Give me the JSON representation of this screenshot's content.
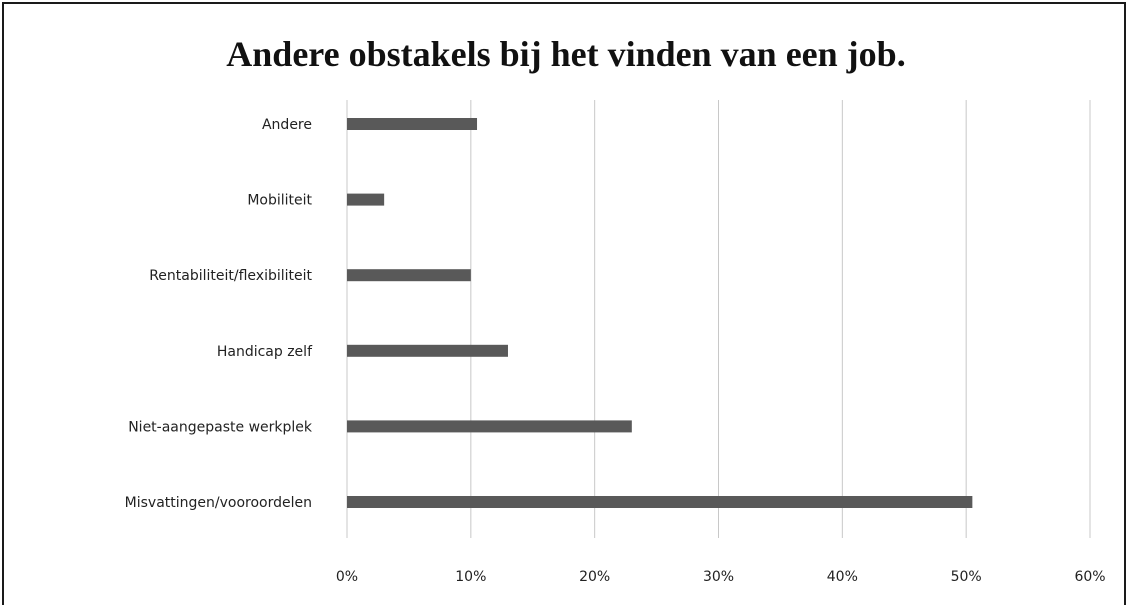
{
  "chart_data": {
    "type": "bar",
    "orientation": "horizontal",
    "title": "Andere obstakels bij het vinden van een job.",
    "categories": [
      "Andere",
      "Mobiliteit",
      "Rentabiliteit/flexibiliteit",
      "Handicap zelf",
      "Niet-aangepaste werkplek",
      "Misvattingen/vooroordelen"
    ],
    "values": [
      10.5,
      3,
      10,
      13,
      23,
      50.5
    ],
    "xlim": [
      0,
      60
    ],
    "xticks": [
      "0%",
      "10%",
      "20%",
      "30%",
      "40%",
      "50%",
      "60%"
    ],
    "grid": true,
    "legend": "none",
    "bar_color": "#595959",
    "grid_color": "#c8c8c8"
  }
}
